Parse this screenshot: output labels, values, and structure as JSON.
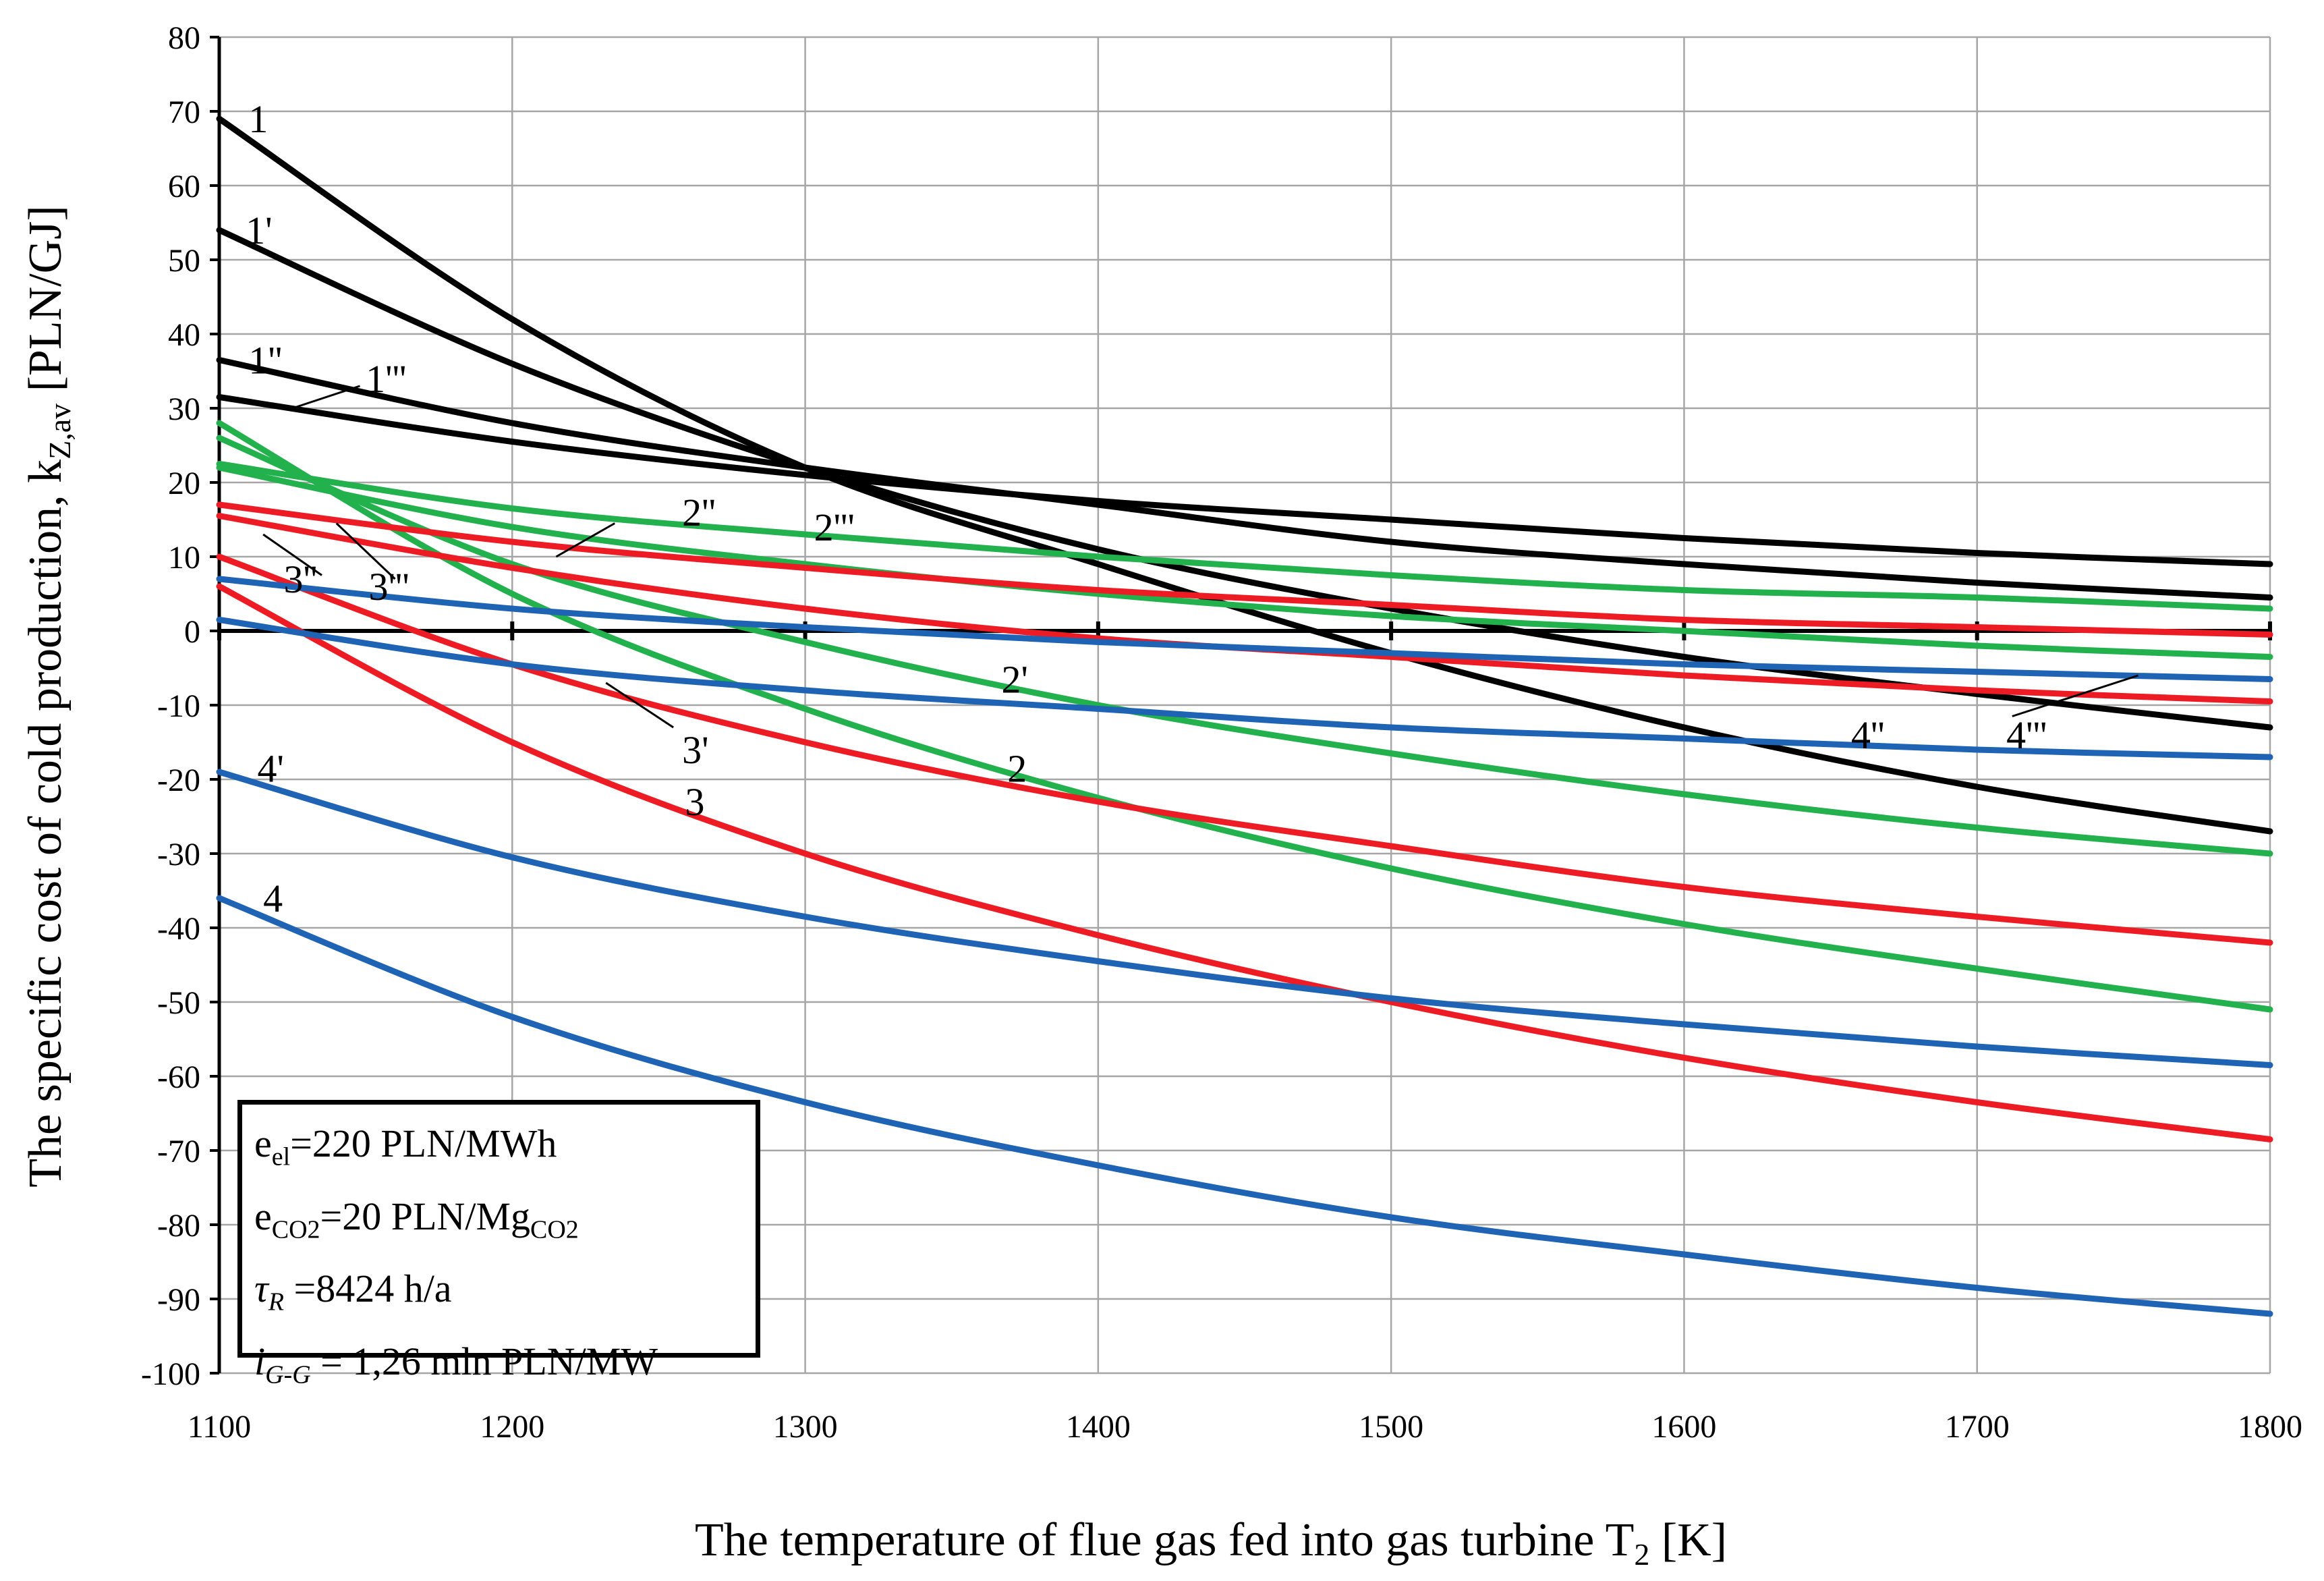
{
  "chart_data": {
    "type": "line",
    "xlabel": "The temperature of flue gas fed into gas turbine T",
    "xlabel_sub": "2",
    "xlabel_unit": " [K]",
    "ylabel": "The specific cost of cold production, k",
    "ylabel_sub": "Z,av",
    "ylabel_unit": " [PLN/GJ]",
    "xlim": [
      1100,
      1800
    ],
    "ylim": [
      -100,
      80
    ],
    "x_ticks": [
      1100,
      1200,
      1300,
      1400,
      1500,
      1600,
      1700,
      1800
    ],
    "y_ticks": [
      -100,
      -90,
      -80,
      -70,
      -60,
      -50,
      -40,
      -30,
      -20,
      -10,
      0,
      10,
      20,
      30,
      40,
      50,
      60,
      70,
      80
    ],
    "grid": true,
    "x": [
      1100,
      1200,
      1300,
      1400,
      1500,
      1600,
      1700,
      1800
    ],
    "series": [
      {
        "name": "1",
        "color": "#000000",
        "values": [
          69,
          42,
          22,
          9,
          -3,
          -13,
          -21,
          -27
        ]
      },
      {
        "name": "1'",
        "color": "#000000",
        "values": [
          54,
          36,
          22,
          11,
          3,
          -3.5,
          -8.5,
          -13
        ]
      },
      {
        "name": "1''",
        "color": "#000000",
        "values": [
          36.5,
          28,
          22,
          17,
          12,
          9,
          6.5,
          4.5
        ]
      },
      {
        "name": "1'''",
        "color": "#000000",
        "values": [
          31.5,
          25.5,
          21,
          17.5,
          15,
          12.5,
          10.5,
          9
        ]
      },
      {
        "name": "2",
        "color": "#22b14c",
        "values": [
          28,
          5,
          -10.5,
          -22.5,
          -32,
          -39.5,
          -45.5,
          -51
        ]
      },
      {
        "name": "2'",
        "color": "#22b14c",
        "values": [
          26,
          9,
          -1.5,
          -10,
          -16.5,
          -22,
          -26.5,
          -30
        ]
      },
      {
        "name": "2''",
        "color": "#22b14c",
        "values": [
          22.5,
          16.5,
          13,
          10,
          7.5,
          5.5,
          4.5,
          3
        ]
      },
      {
        "name": "2'''",
        "color": "#22b14c",
        "values": [
          22,
          14,
          9,
          5,
          2,
          0,
          -2,
          -3.5
        ]
      },
      {
        "name": "3",
        "color": "#ed1c24",
        "values": [
          6,
          -15,
          -30,
          -41,
          -50,
          -57.5,
          -63.5,
          -68.5
        ]
      },
      {
        "name": "3'",
        "color": "#ed1c24",
        "values": [
          10,
          -4.5,
          -15,
          -23,
          -29,
          -34.5,
          -38.5,
          -42
        ]
      },
      {
        "name": "3''",
        "color": "#ed1c24",
        "values": [
          17,
          12,
          8.5,
          5.5,
          3.5,
          1.5,
          0.5,
          -0.5
        ]
      },
      {
        "name": "3'''",
        "color": "#ed1c24",
        "values": [
          15.5,
          8.5,
          3,
          -1,
          -3.5,
          -6,
          -8,
          -9.5
        ]
      },
      {
        "name": "4",
        "color": "#1f63b4",
        "values": [
          -36,
          -52,
          -63.5,
          -72,
          -79,
          -84,
          -88.5,
          -92
        ]
      },
      {
        "name": "4'",
        "color": "#1f63b4",
        "values": [
          -19,
          -30.5,
          -38.5,
          -44.5,
          -49.5,
          -53,
          -56,
          -58.5
        ]
      },
      {
        "name": "4''",
        "color": "#1f63b4",
        "values": [
          1.5,
          -4.5,
          -8,
          -10.5,
          -13,
          -14.5,
          -16,
          -17
        ]
      },
      {
        "name": "4'''",
        "color": "#1f63b4",
        "values": [
          7,
          3,
          0.5,
          -1.5,
          -3,
          -4.5,
          -5.5,
          -6.5
        ]
      }
    ],
    "curve_labels": [
      {
        "text": "1",
        "at": [
          1110,
          69
        ]
      },
      {
        "text": "1'",
        "at": [
          1109,
          54
        ]
      },
      {
        "text": "1''",
        "at": [
          1110,
          36.5
        ]
      },
      {
        "text": "1'''",
        "at": [
          1150,
          34
        ]
      },
      {
        "text": "2''",
        "at": [
          1258,
          16
        ]
      },
      {
        "text": "2'''",
        "at": [
          1303,
          14
        ]
      },
      {
        "text": "3''",
        "at": [
          1122,
          7
        ]
      },
      {
        "text": "3'''",
        "at": [
          1151,
          6
        ]
      },
      {
        "text": "2'",
        "at": [
          1367,
          -6.5
        ]
      },
      {
        "text": "3'",
        "at": [
          1258,
          -16
        ]
      },
      {
        "text": "2",
        "at": [
          1369,
          -18.5
        ]
      },
      {
        "text": "3",
        "at": [
          1259,
          -23
        ]
      },
      {
        "text": "4''",
        "at": [
          1657,
          -14
        ]
      },
      {
        "text": "4'''",
        "at": [
          1710,
          -14
        ]
      },
      {
        "text": "4'",
        "at": [
          1113,
          -18.5
        ]
      },
      {
        "text": "4",
        "at": [
          1115,
          -36
        ]
      }
    ],
    "legend": {
      "line1_main": "e",
      "line1_sub": "el",
      "line1_rest": "=220 PLN/MWh",
      "line2_main": "e",
      "line2_sub": "CO2",
      "line2_rest": "=20 PLN/Mg",
      "line2_sub2": "CO2",
      "line3_main": "τ",
      "line3_sub": "R",
      "line3_rest": " =8424 h/a",
      "line4_main": "i",
      "line4_sub": "G-G",
      "line4_rest": " = 1,26 mln PLN/MW"
    }
  }
}
